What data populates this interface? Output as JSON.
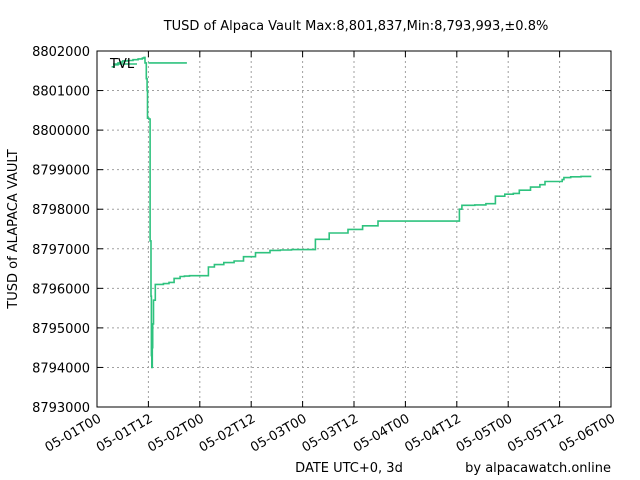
{
  "chart_data": {
    "type": "line",
    "title": "TUSD of Alpaca Vault Max:8,801,837,Min:8,793,993,±0.8%",
    "xlabel": "DATE UTC+0, 3d",
    "ylabel": "TUSD of ALAPACA VAULT",
    "credit": "by alpacawatch.online",
    "legend": {
      "position": "top-left",
      "entries": [
        "TVL"
      ]
    },
    "grid": true,
    "ylim": [
      8793000,
      8802000
    ],
    "yticks": [
      8793000,
      8794000,
      8795000,
      8796000,
      8797000,
      8798000,
      8799000,
      8800000,
      8801000,
      8802000
    ],
    "xlim_hours": [
      0,
      120
    ],
    "xticks": [
      {
        "hour": 0,
        "label": "05-01T00"
      },
      {
        "hour": 12,
        "label": "05-01T12"
      },
      {
        "hour": 24,
        "label": "05-02T00"
      },
      {
        "hour": 36,
        "label": "05-02T12"
      },
      {
        "hour": 48,
        "label": "05-03T00"
      },
      {
        "hour": 60,
        "label": "05-03T12"
      },
      {
        "hour": 72,
        "label": "05-04T00"
      },
      {
        "hour": 84,
        "label": "05-04T12"
      },
      {
        "hour": 96,
        "label": "05-05T00"
      },
      {
        "hour": 108,
        "label": "05-05T12"
      },
      {
        "hour": 120,
        "label": "05-06T00"
      }
    ],
    "series": [
      {
        "name": "TVL",
        "color": "#2ec27e",
        "step": true,
        "x": [
          3.4,
          4.0,
          4.9,
          5.4,
          6.0,
          7.2,
          8.4,
          9.6,
          10.6,
          11.0,
          11.2,
          11.5,
          11.7,
          11.8,
          12.1,
          12.4,
          12.6,
          12.7,
          12.8,
          12.9,
          13.0,
          13.2,
          13.6,
          15.5,
          16.8,
          18.0,
          19.4,
          20.4,
          21.6,
          23.4,
          26.0,
          27.4,
          29.6,
          32.0,
          34.2,
          37.0,
          40.4,
          42.8,
          45.4,
          51.0,
          54.2,
          58.6,
          62.0,
          65.6,
          68.4,
          76.8,
          78.4,
          82.0,
          84.6,
          85.2,
          86.8,
          88.2,
          90.8,
          93.0,
          95.2,
          97.2,
          98.6,
          101.2,
          103.4,
          104.6,
          106.2,
          108.6,
          109.0,
          110.6,
          113.0,
          115.4
        ],
        "y": [
          8801600,
          8801650,
          8801700,
          8801720,
          8801750,
          8801760,
          8801780,
          8801800,
          8801820,
          8801837,
          8801700,
          8801300,
          8801000,
          8800300,
          8800280,
          8797200,
          8795800,
          8794300,
          8794000,
          8794500,
          8795100,
          8795700,
          8796100,
          8796120,
          8796150,
          8796250,
          8796300,
          8796310,
          8796320,
          8796320,
          8796540,
          8796600,
          8796650,
          8796690,
          8796800,
          8796900,
          8796960,
          8796970,
          8796980,
          8797240,
          8797400,
          8797490,
          8797580,
          8797700,
          8797700,
          8797700,
          8797700,
          8797700,
          8798000,
          8798100,
          8798100,
          8798110,
          8798140,
          8798330,
          8798380,
          8798400,
          8798480,
          8798560,
          8798620,
          8798700,
          8798700,
          8798750,
          8798800,
          8798820,
          8798830,
          8798830
        ]
      },
      {
        "name": "",
        "color": "#2ec27e",
        "step": true,
        "x": [
          12.0,
          21.0
        ],
        "y": [
          8801700,
          8801700
        ]
      }
    ]
  }
}
